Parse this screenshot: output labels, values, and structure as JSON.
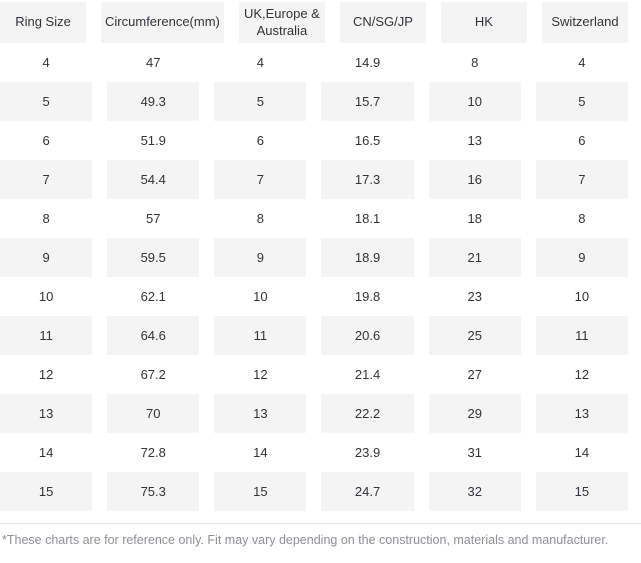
{
  "table": {
    "columns": [
      "Ring Size",
      "Circumference(mm)",
      "UK,Europe & Australia",
      "CN/SG/JP",
      "HK",
      "Switzerland"
    ],
    "rows": [
      [
        "4",
        "47",
        "4",
        "14.9",
        "8",
        "4"
      ],
      [
        "5",
        "49.3",
        "5",
        "15.7",
        "10",
        "5"
      ],
      [
        "6",
        "51.9",
        "6",
        "16.5",
        "13",
        "6"
      ],
      [
        "7",
        "54.4",
        "7",
        "17.3",
        "16",
        "7"
      ],
      [
        "8",
        "57",
        "8",
        "18.1",
        "18",
        "8"
      ],
      [
        "9",
        "59.5",
        "9",
        "18.9",
        "21",
        "9"
      ],
      [
        "10",
        "62.1",
        "10",
        "19.8",
        "23",
        "10"
      ],
      [
        "11",
        "64.6",
        "11",
        "20.6",
        "25",
        "11"
      ],
      [
        "12",
        "67.2",
        "12",
        "21.4",
        "27",
        "12"
      ],
      [
        "13",
        "70",
        "13",
        "22.2",
        "29",
        "13"
      ],
      [
        "14",
        "72.8",
        "14",
        "23.9",
        "31",
        "14"
      ],
      [
        "15",
        "75.3",
        "15",
        "24.7",
        "32",
        "15"
      ]
    ]
  },
  "footnote": "*These charts are for reference only. Fit may vary depending on the construction, materials and manufacturer.",
  "colors": {
    "row_alt_background": "#f4f4f5",
    "cell_text": "#333338",
    "footnote_text": "#8f9095",
    "divider": "#e7e7e9"
  },
  "chart_data": {
    "type": "table",
    "title": "",
    "columns": [
      "Ring Size",
      "Circumference(mm)",
      "UK,Europe & Australia",
      "CN/SG/JP",
      "HK",
      "Switzerland"
    ],
    "rows": [
      [
        4,
        47,
        4,
        14.9,
        8,
        4
      ],
      [
        5,
        49.3,
        5,
        15.7,
        10,
        5
      ],
      [
        6,
        51.9,
        6,
        16.5,
        13,
        6
      ],
      [
        7,
        54.4,
        7,
        17.3,
        16,
        7
      ],
      [
        8,
        57,
        8,
        18.1,
        18,
        8
      ],
      [
        9,
        59.5,
        9,
        18.9,
        21,
        9
      ],
      [
        10,
        62.1,
        10,
        19.8,
        23,
        10
      ],
      [
        11,
        64.6,
        11,
        20.6,
        25,
        11
      ],
      [
        12,
        67.2,
        12,
        21.4,
        27,
        12
      ],
      [
        13,
        70,
        13,
        22.2,
        29,
        13
      ],
      [
        14,
        72.8,
        14,
        23.9,
        31,
        14
      ],
      [
        15,
        75.3,
        15,
        24.7,
        32,
        15
      ]
    ],
    "annotation": "*These charts are for reference only. Fit may vary depending on the construction, materials and manufacturer.",
    "layout": {
      "header_background": "#f4f4f5",
      "zebra_striping": true,
      "grid": "white column gutters"
    }
  }
}
